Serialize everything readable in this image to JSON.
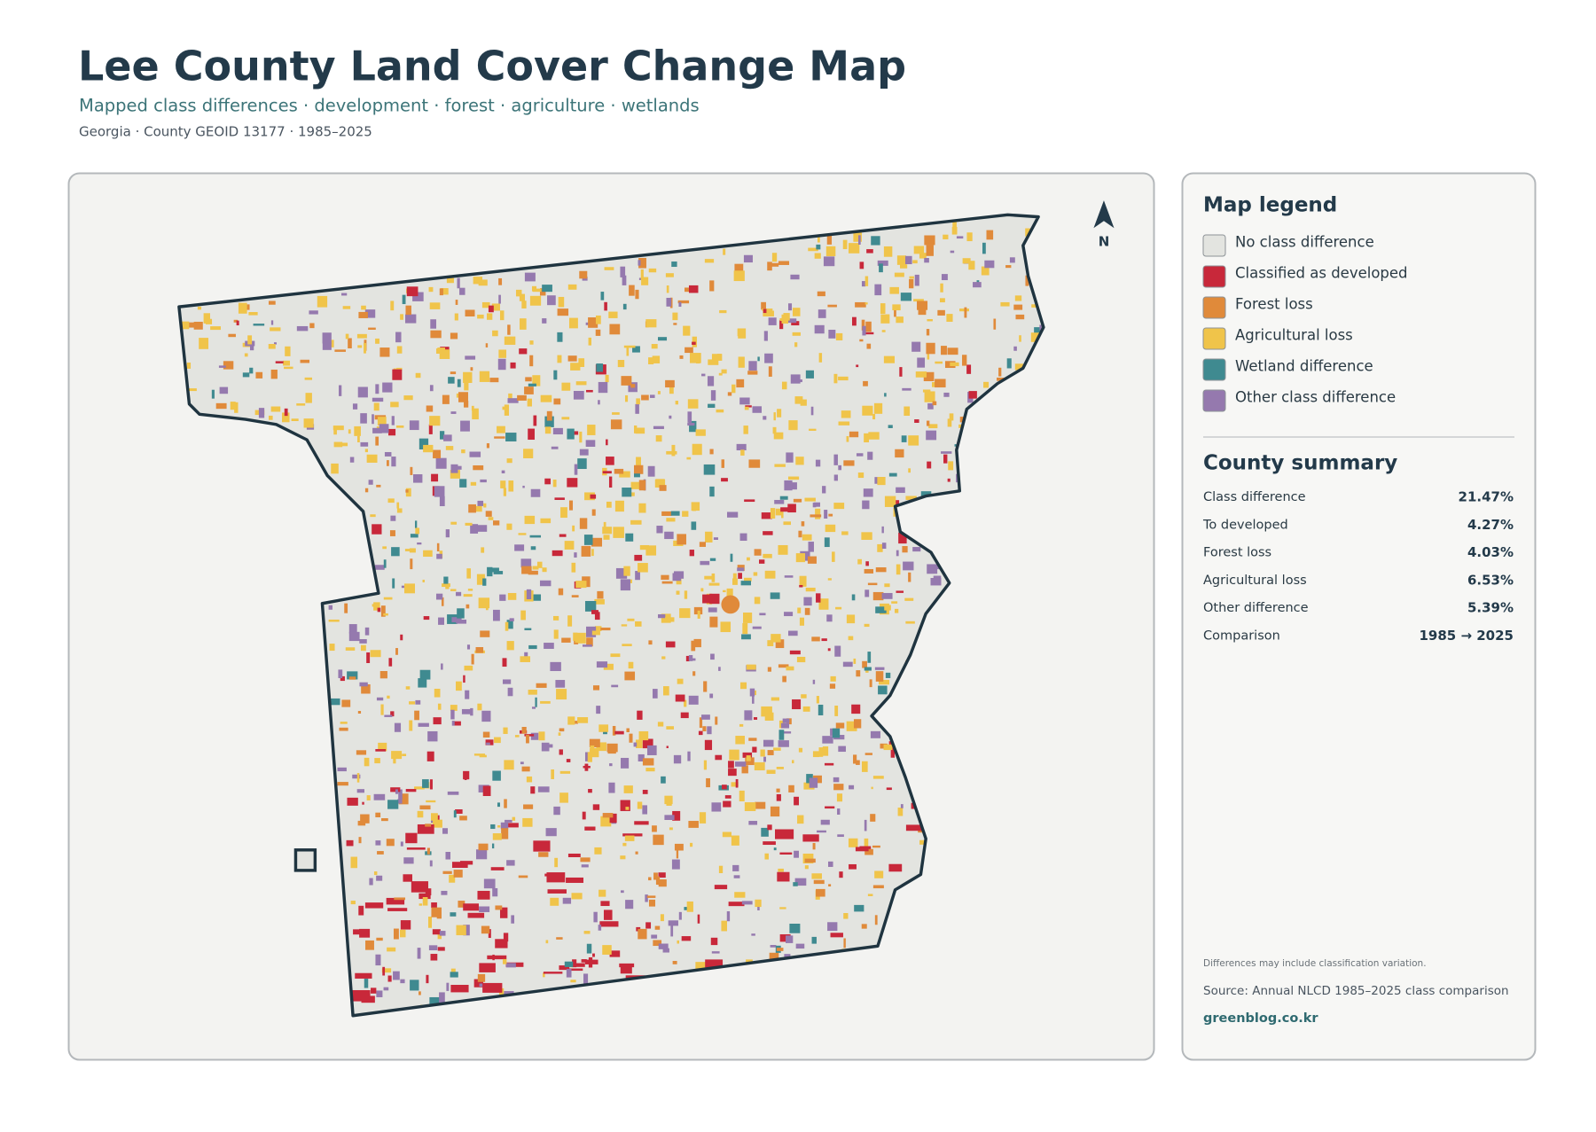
{
  "header": {
    "title": "Lee County Land Cover Change Map",
    "subtitle": "Mapped class differences · development · forest · agriculture · wetlands",
    "meta": "Georgia · County GEOID 13177 · 1985–2025"
  },
  "map": {
    "north_label": "N"
  },
  "legend": {
    "title": "Map legend",
    "items": [
      {
        "label": "No class difference",
        "color": "#e3e4e0"
      },
      {
        "label": "Classified as developed",
        "color": "#c8283a"
      },
      {
        "label": "Forest loss",
        "color": "#e08a3a"
      },
      {
        "label": "Agricultural loss",
        "color": "#f0c44a"
      },
      {
        "label": "Wetland difference",
        "color": "#3f8a90"
      },
      {
        "label": "Other class difference",
        "color": "#9579ae"
      }
    ]
  },
  "summary": {
    "title": "County summary",
    "rows": [
      [
        "Class difference",
        "21.47%"
      ],
      [
        "To developed",
        "4.27%"
      ],
      [
        "Forest loss",
        "4.03%"
      ],
      [
        "Agricultural loss",
        "6.53%"
      ],
      [
        "Other difference",
        "5.39%"
      ],
      [
        "Comparison",
        "1985 → 2025"
      ]
    ]
  },
  "footer": {
    "note": "Differences may include classification variation.",
    "source": "Source: Annual NLCD 1985–2025 class comparison",
    "site": "greenblog.co.kr"
  }
}
